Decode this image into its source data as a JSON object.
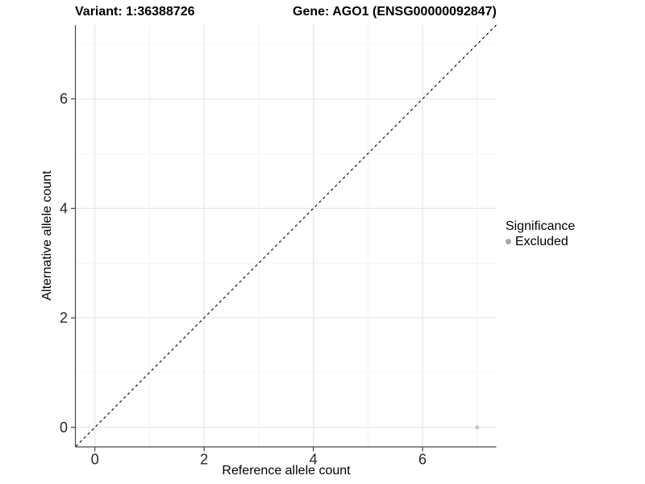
{
  "header": {
    "title_left": "Variant: 1:36388726",
    "title_right": "Gene: AGO1 (ENSG00000092847)"
  },
  "chart_data": {
    "type": "scatter",
    "title": "Variant: 1:36388726 — Gene: AGO1 (ENSG00000092847)",
    "xlabel": "Reference allele count",
    "ylabel": "Alternative allele count",
    "xlim": [
      -0.35,
      7.35
    ],
    "ylim": [
      -0.35,
      7.35
    ],
    "x_ticks": [
      0,
      2,
      4,
      6
    ],
    "y_ticks": [
      0,
      2,
      4,
      6
    ],
    "grid": {
      "from": 0,
      "to": 7,
      "step": 1,
      "major_ticks_only_labeled": true
    },
    "reference_line": {
      "type": "identity",
      "style": "dashed",
      "x1": -0.35,
      "y1": -0.35,
      "x2": 7.35,
      "y2": 7.35,
      "color": "#000000"
    },
    "points": [
      {
        "x": 7,
        "y": 0,
        "significance": "Excluded"
      }
    ],
    "legend": {
      "title": "Significance",
      "position": "right",
      "entries": [
        {
          "label": "Excluded",
          "color": "#a8a8a8"
        }
      ]
    },
    "colors": {
      "point": "#c6c6c6",
      "grid_major": "#e4e4e4",
      "grid_minor": "#f1f1f1",
      "axis_line": "#474747",
      "tick_mark": "#333333",
      "tick_text": "#262626",
      "text": "#000000"
    }
  }
}
